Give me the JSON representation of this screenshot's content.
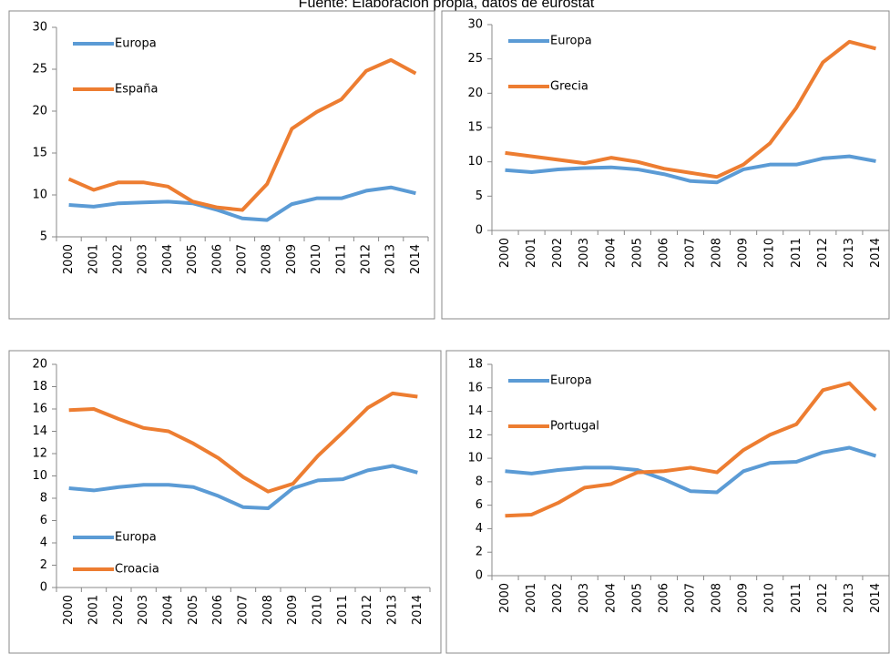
{
  "caption": "Fuente: Elaboración propia, datos de eurostat",
  "chart_data": [
    {
      "type": "line",
      "categories": [
        "2000",
        "2001",
        "2002",
        "2003",
        "2004",
        "2005",
        "2006",
        "2007",
        "2008",
        "2009",
        "2010",
        "2011",
        "2012",
        "2013",
        "2014"
      ],
      "series": [
        {
          "name": "Europa",
          "color": "#5b9bd5",
          "values": [
            8.8,
            8.6,
            9.0,
            9.1,
            9.2,
            9.0,
            8.2,
            7.2,
            7.0,
            8.9,
            9.6,
            9.6,
            10.5,
            10.9,
            10.2
          ]
        },
        {
          "name": "España",
          "color": "#ed7d31",
          "values": [
            11.9,
            10.6,
            11.5,
            11.5,
            11.0,
            9.2,
            8.5,
            8.2,
            11.3,
            17.9,
            19.9,
            21.4,
            24.8,
            26.1,
            24.5
          ]
        }
      ],
      "ylim": [
        5,
        30
      ],
      "yticks": [
        5,
        10,
        15,
        20,
        25,
        30
      ],
      "legend": "top-left"
    },
    {
      "type": "line",
      "categories": [
        "2000",
        "2001",
        "2002",
        "2003",
        "2004",
        "2005",
        "2006",
        "2007",
        "2008",
        "2009",
        "2010",
        "2011",
        "2012",
        "2013",
        "2014"
      ],
      "series": [
        {
          "name": "Europa",
          "color": "#5b9bd5",
          "values": [
            8.8,
            8.5,
            8.9,
            9.1,
            9.2,
            8.9,
            8.2,
            7.2,
            7.0,
            8.9,
            9.6,
            9.6,
            10.5,
            10.8,
            10.1
          ]
        },
        {
          "name": "Grecia",
          "color": "#ed7d31",
          "values": [
            11.3,
            10.8,
            10.3,
            9.8,
            10.6,
            10.0,
            9.0,
            8.4,
            7.8,
            9.6,
            12.7,
            17.9,
            24.5,
            27.5,
            26.5
          ]
        }
      ],
      "ylim": [
        0,
        30
      ],
      "yticks": [
        0,
        5,
        10,
        15,
        20,
        25,
        30
      ],
      "legend": "top-left"
    },
    {
      "type": "line",
      "categories": [
        "2000",
        "2001",
        "2002",
        "2003",
        "2004",
        "2005",
        "2006",
        "2007",
        "2008",
        "2009",
        "2010",
        "2011",
        "2012",
        "2013",
        "2014"
      ],
      "series": [
        {
          "name": "Europa",
          "color": "#5b9bd5",
          "values": [
            8.9,
            8.7,
            9.0,
            9.2,
            9.2,
            9.0,
            8.2,
            7.2,
            7.1,
            8.9,
            9.6,
            9.7,
            10.5,
            10.9,
            10.3
          ]
        },
        {
          "name": "Croacia",
          "color": "#ed7d31",
          "values": [
            15.9,
            16.0,
            15.1,
            14.3,
            14.0,
            12.9,
            11.6,
            9.9,
            8.6,
            9.3,
            11.8,
            13.9,
            16.1,
            17.4,
            17.1
          ]
        }
      ],
      "ylim": [
        0,
        20
      ],
      "yticks": [
        0,
        2,
        4,
        6,
        8,
        10,
        12,
        14,
        16,
        18,
        20
      ],
      "legend": "bottom-left"
    },
    {
      "type": "line",
      "categories": [
        "2000",
        "2001",
        "2002",
        "2003",
        "2004",
        "2005",
        "2006",
        "2007",
        "2008",
        "2009",
        "2010",
        "2011",
        "2012",
        "2013",
        "2014"
      ],
      "series": [
        {
          "name": "Europa",
          "color": "#5b9bd5",
          "values": [
            8.9,
            8.7,
            9.0,
            9.2,
            9.2,
            9.0,
            8.2,
            7.2,
            7.1,
            8.9,
            9.6,
            9.7,
            10.5,
            10.9,
            10.2
          ]
        },
        {
          "name": "Portugal",
          "color": "#ed7d31",
          "values": [
            5.1,
            5.2,
            6.2,
            7.5,
            7.8,
            8.8,
            8.9,
            9.2,
            8.8,
            10.7,
            12.0,
            12.9,
            15.8,
            16.4,
            14.1
          ]
        }
      ],
      "ylim": [
        0,
        18
      ],
      "yticks": [
        0,
        2,
        4,
        6,
        8,
        10,
        12,
        14,
        16,
        18
      ],
      "legend": "top-left"
    }
  ]
}
